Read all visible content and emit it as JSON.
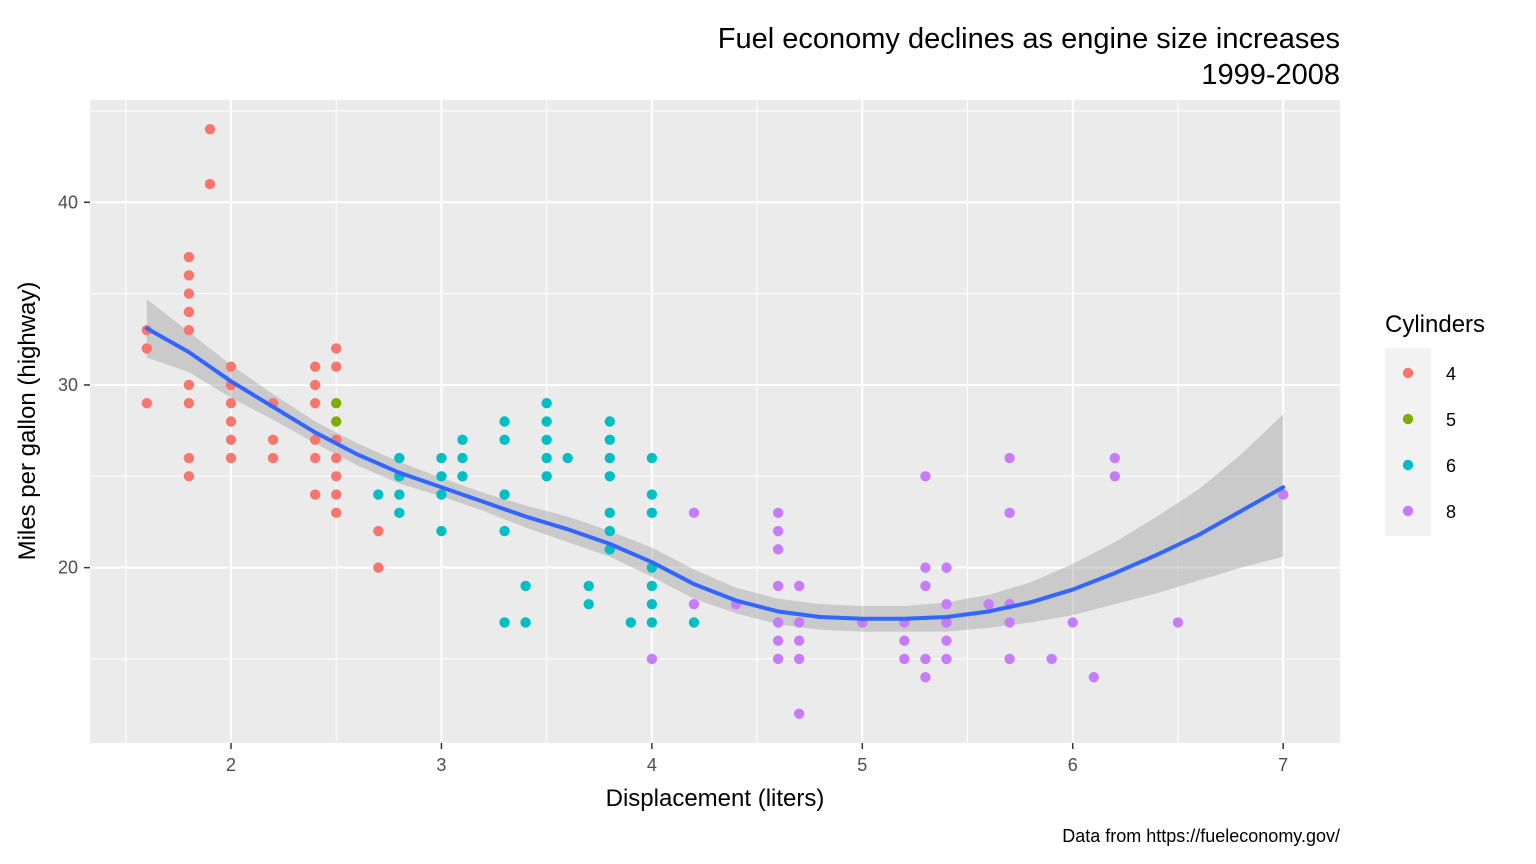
{
  "chart_data": {
    "type": "scatter",
    "title": "Fuel economy declines as engine size increases",
    "subtitle": "1999-2008",
    "xlabel": "Displacement (liters)",
    "ylabel": "Miles per gallon (highway)",
    "caption": "Data from https://fueleconomy.gov/",
    "xlim": [
      1.33,
      7.27
    ],
    "ylim": [
      10.4,
      45.6
    ],
    "x_ticks": [
      "2",
      "3",
      "4",
      "5",
      "6",
      "7"
    ],
    "y_ticks": [
      "20",
      "30",
      "40"
    ],
    "x_tick_values": [
      2,
      3,
      4,
      5,
      6,
      7
    ],
    "y_tick_values": [
      20,
      30,
      40
    ],
    "grid": true,
    "legend": {
      "title": "Cylinders",
      "position": "right",
      "entries": [
        {
          "label": "4",
          "color": "#F8766D"
        },
        {
          "label": "5",
          "color": "#7CAE00"
        },
        {
          "label": "6",
          "color": "#00BFC4"
        },
        {
          "label": "8",
          "color": "#C77CFF"
        }
      ]
    },
    "series": [
      {
        "name": "4",
        "color": "#F8766D",
        "points": [
          [
            1.6,
            33
          ],
          [
            1.6,
            32
          ],
          [
            1.6,
            29
          ],
          [
            1.8,
            37
          ],
          [
            1.8,
            36
          ],
          [
            1.8,
            35
          ],
          [
            1.8,
            34
          ],
          [
            1.8,
            33
          ],
          [
            1.8,
            30
          ],
          [
            1.8,
            29
          ],
          [
            1.8,
            26
          ],
          [
            1.8,
            25
          ],
          [
            1.9,
            44
          ],
          [
            1.9,
            41
          ],
          [
            2.0,
            31
          ],
          [
            2.0,
            30
          ],
          [
            2.0,
            29
          ],
          [
            2.0,
            28
          ],
          [
            2.0,
            27
          ],
          [
            2.0,
            26
          ],
          [
            2.2,
            29
          ],
          [
            2.2,
            27
          ],
          [
            2.2,
            26
          ],
          [
            2.4,
            31
          ],
          [
            2.4,
            30
          ],
          [
            2.4,
            29
          ],
          [
            2.4,
            27
          ],
          [
            2.4,
            26
          ],
          [
            2.4,
            24
          ],
          [
            2.5,
            32
          ],
          [
            2.5,
            31
          ],
          [
            2.5,
            27
          ],
          [
            2.5,
            26
          ],
          [
            2.5,
            25
          ],
          [
            2.5,
            24
          ],
          [
            2.5,
            23
          ],
          [
            2.7,
            22
          ],
          [
            2.7,
            20
          ]
        ]
      },
      {
        "name": "5",
        "color": "#7CAE00",
        "points": [
          [
            2.5,
            29
          ],
          [
            2.5,
            28
          ]
        ]
      },
      {
        "name": "6",
        "color": "#00BFC4",
        "points": [
          [
            2.7,
            24
          ],
          [
            2.8,
            26
          ],
          [
            2.8,
            25
          ],
          [
            2.8,
            24
          ],
          [
            2.8,
            23
          ],
          [
            3.0,
            26
          ],
          [
            3.0,
            25
          ],
          [
            3.0,
            24
          ],
          [
            3.0,
            22
          ],
          [
            3.1,
            27
          ],
          [
            3.1,
            26
          ],
          [
            3.1,
            25
          ],
          [
            3.3,
            28
          ],
          [
            3.3,
            27
          ],
          [
            3.3,
            24
          ],
          [
            3.3,
            22
          ],
          [
            3.3,
            17
          ],
          [
            3.4,
            19
          ],
          [
            3.4,
            17
          ],
          [
            3.5,
            29
          ],
          [
            3.5,
            28
          ],
          [
            3.5,
            27
          ],
          [
            3.5,
            26
          ],
          [
            3.5,
            25
          ],
          [
            3.6,
            26
          ],
          [
            3.7,
            19
          ],
          [
            3.7,
            18
          ],
          [
            3.8,
            28
          ],
          [
            3.8,
            27
          ],
          [
            3.8,
            26
          ],
          [
            3.8,
            25
          ],
          [
            3.8,
            23
          ],
          [
            3.8,
            22
          ],
          [
            3.8,
            21
          ],
          [
            3.9,
            17
          ],
          [
            4.0,
            26
          ],
          [
            4.0,
            24
          ],
          [
            4.0,
            23
          ],
          [
            4.0,
            20
          ],
          [
            4.0,
            19
          ],
          [
            4.0,
            18
          ],
          [
            4.0,
            17
          ],
          [
            4.2,
            17
          ]
        ]
      },
      {
        "name": "8",
        "color": "#C77CFF",
        "points": [
          [
            4.0,
            15
          ],
          [
            4.2,
            23
          ],
          [
            4.2,
            18
          ],
          [
            4.4,
            18
          ],
          [
            4.6,
            23
          ],
          [
            4.6,
            22
          ],
          [
            4.6,
            21
          ],
          [
            4.6,
            19
          ],
          [
            4.6,
            17
          ],
          [
            4.6,
            16
          ],
          [
            4.6,
            15
          ],
          [
            4.7,
            19
          ],
          [
            4.7,
            17
          ],
          [
            4.7,
            16
          ],
          [
            4.7,
            15
          ],
          [
            4.7,
            12
          ],
          [
            5.0,
            17
          ],
          [
            5.2,
            17
          ],
          [
            5.2,
            16
          ],
          [
            5.2,
            15
          ],
          [
            5.3,
            25
          ],
          [
            5.3,
            20
          ],
          [
            5.3,
            19
          ],
          [
            5.3,
            15
          ],
          [
            5.3,
            14
          ],
          [
            5.4,
            20
          ],
          [
            5.4,
            18
          ],
          [
            5.4,
            17
          ],
          [
            5.4,
            16
          ],
          [
            5.4,
            15
          ],
          [
            5.6,
            18
          ],
          [
            5.7,
            26
          ],
          [
            5.7,
            23
          ],
          [
            5.7,
            18
          ],
          [
            5.7,
            17
          ],
          [
            5.7,
            15
          ],
          [
            5.9,
            15
          ],
          [
            6.0,
            17
          ],
          [
            6.1,
            14
          ],
          [
            6.2,
            26
          ],
          [
            6.2,
            25
          ],
          [
            6.5,
            17
          ],
          [
            7.0,
            24
          ]
        ]
      }
    ],
    "smooth": {
      "method": "loess",
      "color": "#3366FF",
      "se_fill": "#999999",
      "curve": [
        [
          1.6,
          33.1
        ],
        [
          1.8,
          31.8
        ],
        [
          2.0,
          30.2
        ],
        [
          2.2,
          28.8
        ],
        [
          2.4,
          27.4
        ],
        [
          2.6,
          26.2
        ],
        [
          2.8,
          25.2
        ],
        [
          3.0,
          24.4
        ],
        [
          3.2,
          23.6
        ],
        [
          3.4,
          22.8
        ],
        [
          3.6,
          22.1
        ],
        [
          3.8,
          21.3
        ],
        [
          4.0,
          20.3
        ],
        [
          4.2,
          19.1
        ],
        [
          4.4,
          18.2
        ],
        [
          4.6,
          17.6
        ],
        [
          4.8,
          17.3
        ],
        [
          5.0,
          17.2
        ],
        [
          5.2,
          17.2
        ],
        [
          5.4,
          17.3
        ],
        [
          5.6,
          17.6
        ],
        [
          5.8,
          18.1
        ],
        [
          6.0,
          18.8
        ],
        [
          6.2,
          19.7
        ],
        [
          6.4,
          20.7
        ],
        [
          6.6,
          21.8
        ],
        [
          6.8,
          23.1
        ],
        [
          7.0,
          24.4
        ]
      ],
      "upper": [
        [
          1.6,
          34.7
        ],
        [
          1.8,
          32.9
        ],
        [
          2.0,
          31.1
        ],
        [
          2.2,
          29.5
        ],
        [
          2.4,
          28.0
        ],
        [
          2.6,
          26.8
        ],
        [
          2.8,
          25.8
        ],
        [
          3.0,
          24.9
        ],
        [
          3.2,
          24.1
        ],
        [
          3.4,
          23.4
        ],
        [
          3.6,
          22.8
        ],
        [
          3.8,
          22.0
        ],
        [
          4.0,
          21.1
        ],
        [
          4.2,
          19.9
        ],
        [
          4.4,
          18.9
        ],
        [
          4.6,
          18.3
        ],
        [
          4.8,
          18.0
        ],
        [
          5.0,
          17.9
        ],
        [
          5.2,
          17.9
        ],
        [
          5.4,
          18.1
        ],
        [
          5.6,
          18.5
        ],
        [
          5.8,
          19.2
        ],
        [
          6.0,
          20.2
        ],
        [
          6.2,
          21.4
        ],
        [
          6.4,
          22.8
        ],
        [
          6.6,
          24.3
        ],
        [
          6.8,
          26.2
        ],
        [
          7.0,
          28.4
        ]
      ],
      "lower": [
        [
          1.6,
          31.5
        ],
        [
          1.8,
          30.7
        ],
        [
          2.0,
          29.3
        ],
        [
          2.2,
          28.1
        ],
        [
          2.4,
          26.8
        ],
        [
          2.6,
          25.6
        ],
        [
          2.8,
          24.6
        ],
        [
          3.0,
          23.9
        ],
        [
          3.2,
          23.1
        ],
        [
          3.4,
          22.2
        ],
        [
          3.6,
          21.4
        ],
        [
          3.8,
          20.6
        ],
        [
          4.0,
          19.5
        ],
        [
          4.2,
          18.3
        ],
        [
          4.4,
          17.5
        ],
        [
          4.6,
          16.9
        ],
        [
          4.8,
          16.6
        ],
        [
          5.0,
          16.5
        ],
        [
          5.2,
          16.5
        ],
        [
          5.4,
          16.5
        ],
        [
          5.6,
          16.7
        ],
        [
          5.8,
          17.0
        ],
        [
          6.0,
          17.4
        ],
        [
          6.2,
          18.0
        ],
        [
          6.4,
          18.6
        ],
        [
          6.6,
          19.3
        ],
        [
          6.8,
          20.0
        ],
        [
          7.0,
          20.6
        ]
      ]
    }
  }
}
